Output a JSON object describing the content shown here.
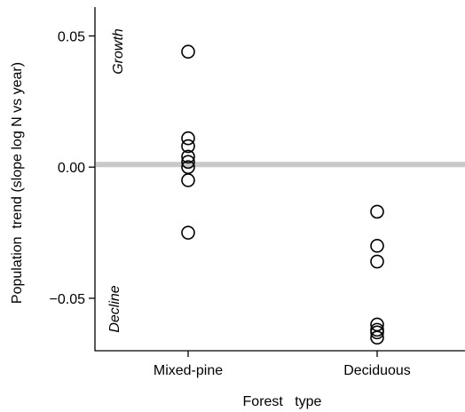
{
  "chart_data": {
    "type": "scatter",
    "xlabel": "Forest   type",
    "ylabel": "Population  trend (slope log N vs year)",
    "categories": [
      "Mixed-pine",
      "Deciduous"
    ],
    "ylim": [
      -0.07,
      0.061
    ],
    "yticks": [
      0.05,
      0.0,
      -0.05
    ],
    "ytick_labels": [
      "0.05",
      "0.00",
      "−0.05"
    ],
    "reference_line": {
      "y": 0.001,
      "color": "#c8c8c8"
    },
    "annotations": {
      "top": "Growth",
      "bottom": "Decline"
    },
    "series": [
      {
        "category": "Mixed-pine",
        "values": [
          0.044,
          0.011,
          0.008,
          0.004,
          0.002,
          0.0,
          -0.005,
          -0.025
        ]
      },
      {
        "category": "Deciduous",
        "values": [
          -0.017,
          -0.03,
          -0.036,
          -0.06,
          -0.062,
          -0.063,
          -0.065
        ]
      }
    ],
    "marker": "open-circle",
    "grid": false
  }
}
